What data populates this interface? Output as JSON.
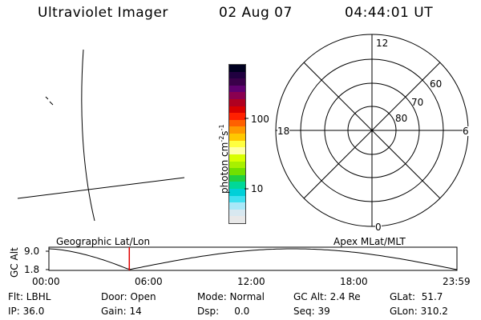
{
  "header": {
    "instrument": "Ultraviolet Imager",
    "date": "02 Aug 07",
    "time": "04:44:01 UT"
  },
  "colorbar": {
    "label": "photon cm⁻²s⁻¹",
    "label_text": "photon cm",
    "sup1": "-2",
    "mid": "s",
    "sup2": "-1",
    "ticks": [
      "100",
      "10"
    ],
    "colors": [
      "#000020",
      "#200040",
      "#3a004a",
      "#600070",
      "#8a0050",
      "#b00020",
      "#d80000",
      "#ff2000",
      "#ff6000",
      "#ff9800",
      "#ffc800",
      "#ffff40",
      "#ffffa8",
      "#d8ff00",
      "#a8f000",
      "#70e000",
      "#20d040",
      "#00d898",
      "#00d0d8",
      "#40e0f0",
      "#a8e8f8",
      "#d8e8f0",
      "#e8e8e8"
    ]
  },
  "polar_plot": {
    "hour_labels": {
      "top": "12",
      "left": "18",
      "right": "6",
      "bottom": "0"
    },
    "lat_labels": [
      "60",
      "70",
      "80"
    ]
  },
  "timeline": {
    "left_label": "Geographic Lat/Lon",
    "right_label": "Apex MLat/MLT",
    "axis_title": "GC Alt",
    "y_top": "9.0",
    "y_bottom": "1.8",
    "time_ticks": [
      "00:00",
      "06:00",
      "12:00",
      "18:00",
      "23:59"
    ],
    "current_time_fraction": 0.197
  },
  "info": {
    "flt": "Flt: LBHL",
    "ip": "IP: 36.0",
    "door": "Door: Open",
    "gain": "Gain: 14",
    "mode": "Mode: Normal",
    "dsp": "Dsp:     0.0",
    "gcalt": "GC Alt: 2.4 Re",
    "seq": "Seq: 39",
    "glat": "GLat:  51.7",
    "glon": "GLon: 310.2"
  }
}
